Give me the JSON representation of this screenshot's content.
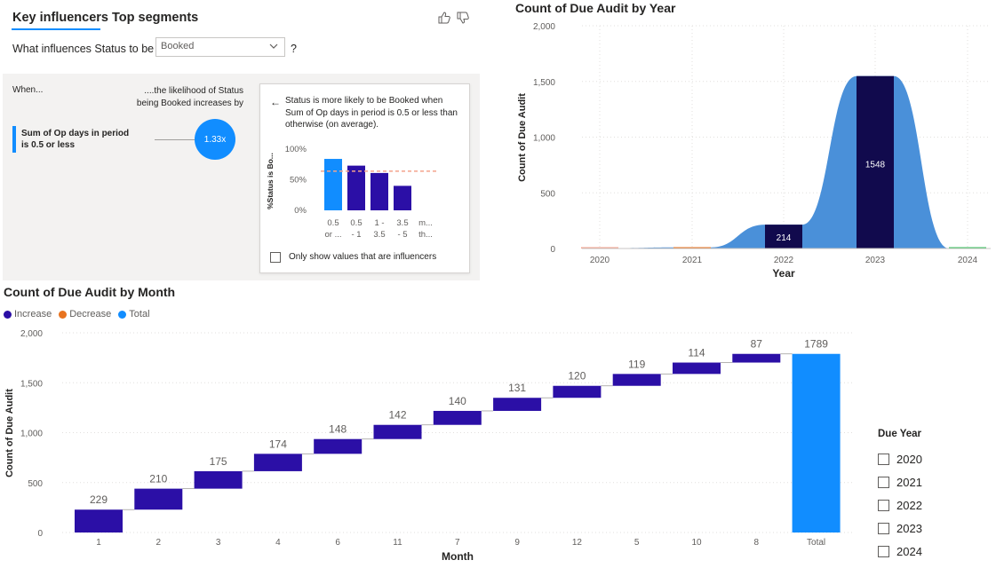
{
  "key_influencers": {
    "tabs": [
      {
        "label": "Key influencers",
        "active": true
      },
      {
        "label": "Top segments",
        "active": false
      }
    ],
    "question_prefix": "What influences Status to be",
    "selected_status": "Booked",
    "question_suffix": "?",
    "when_label": "When...",
    "likelihood_label": "....the likelihood of Status being Booked increases by",
    "influencer": {
      "label": "Sum of Op days in period is 0.5 or less",
      "factor": "1.33x"
    },
    "detail": {
      "text": "Status is more likely to be Booked when Sum of Op days in period is 0.5 or less than otherwise (on average).",
      "checkbox_label": "Only show values that are influencers"
    },
    "colors": {
      "accent": "#118dff",
      "bar": "#2b0fa6",
      "panel_bg": "#f3f2f1",
      "avg_line": "#f4a28c"
    }
  },
  "chart_data": [
    {
      "id": "mini",
      "type": "bar",
      "ylabel": "%Status is Bo...",
      "yticks": [
        "100%",
        "50%",
        "0%"
      ],
      "ylim": [
        0,
        100
      ],
      "categories": [
        [
          "0.5",
          "or ..."
        ],
        [
          "0.5",
          "- 1"
        ],
        [
          "1 -",
          "3.5"
        ],
        [
          "3.5",
          "- 5"
        ],
        [
          "m...",
          "th..."
        ]
      ],
      "values": [
        84,
        73,
        61,
        40,
        null
      ],
      "highlight_index": 0,
      "average": 64
    },
    {
      "id": "year",
      "type": "area",
      "title": "Count of Due Audit by Year",
      "xlabel": "Year",
      "ylabel": "Count of Due Audit",
      "categories": [
        "2020",
        "2021",
        "2022",
        "2023",
        "2024"
      ],
      "values": [
        4,
        10,
        214,
        1548,
        1
      ],
      "ylim": [
        0,
        2000
      ],
      "yticks": [
        "0",
        "500",
        "1,000",
        "1,500",
        "2,000"
      ],
      "data_labels": [
        "",
        "",
        "214",
        "1548",
        ""
      ],
      "colors": {
        "area": "#4a90d9",
        "bar": "#110a4d",
        "small": [
          "#f4a28c",
          "#e8731f",
          "#110a4d",
          "#110a4d",
          "#3ac15e"
        ]
      }
    },
    {
      "id": "month",
      "type": "bar",
      "title": "Count of Due Audit by Month",
      "xlabel": "Month",
      "ylabel": "Count of Due Audit",
      "legend": [
        {
          "name": "Increase",
          "color": "#2b0fa6"
        },
        {
          "name": "Decrease",
          "color": "#e8731f"
        },
        {
          "name": "Total",
          "color": "#118dff"
        }
      ],
      "categories": [
        "1",
        "2",
        "3",
        "4",
        "6",
        "11",
        "7",
        "9",
        "12",
        "5",
        "10",
        "8",
        "Total"
      ],
      "values": [
        229,
        210,
        175,
        174,
        148,
        142,
        140,
        131,
        120,
        119,
        114,
        87,
        1789
      ],
      "ylim": [
        0,
        2000
      ],
      "yticks": [
        "0",
        "500",
        "1,000",
        "1,500",
        "2,000"
      ]
    }
  ],
  "slicer": {
    "title": "Due Year",
    "items": [
      "2020",
      "2021",
      "2022",
      "2023",
      "2024"
    ]
  }
}
